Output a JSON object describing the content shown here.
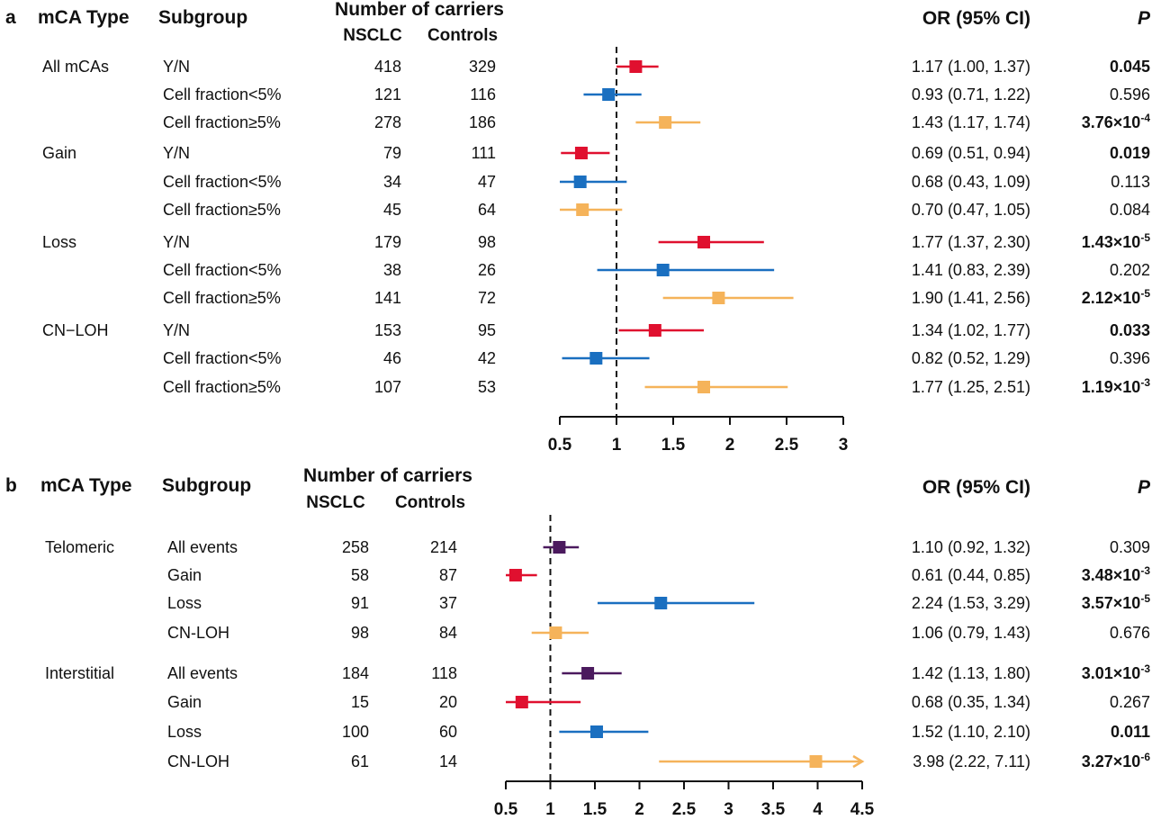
{
  "colors": {
    "yn": "#e0102f",
    "low": "#1a6fc0",
    "high": "#f5b35a",
    "all": "#4b1a5e",
    "axis": "#111111"
  },
  "chart_data": [
    {
      "type": "forest",
      "panel_label": "a",
      "columns": {
        "type": "mCA Type",
        "subgroup": "Subgroup",
        "carriers": "Number of carriers",
        "nsclc": "NSCLC",
        "controls": "Controls",
        "or": "OR (95% CI)",
        "p": "P"
      },
      "xaxis": {
        "range": [
          0.5,
          3
        ],
        "ticks": [
          "0.5",
          "1",
          "1.5",
          "2",
          "2.5",
          "3"
        ],
        "reference": 1
      },
      "rows": [
        {
          "type": "All mCAs",
          "subgroup": "Y/N",
          "nsclc": "418",
          "controls": "329",
          "or": 1.17,
          "lo": 1.0,
          "hi": 1.37,
          "or_text": "1.17 (1.00, 1.37)",
          "p_text": "0.045",
          "p_sup": "",
          "p_bold": true,
          "color": "yn"
        },
        {
          "type": "",
          "subgroup": "Cell fraction<5%",
          "nsclc": "121",
          "controls": "116",
          "or": 0.93,
          "lo": 0.71,
          "hi": 1.22,
          "or_text": "0.93 (0.71, 1.22)",
          "p_text": "0.596",
          "p_sup": "",
          "p_bold": false,
          "color": "low"
        },
        {
          "type": "",
          "subgroup": "Cell fraction≥5%",
          "nsclc": "278",
          "controls": "186",
          "or": 1.43,
          "lo": 1.17,
          "hi": 1.74,
          "or_text": "1.43 (1.17, 1.74)",
          "p_text": "3.76×10",
          "p_sup": "-4",
          "p_bold": true,
          "color": "high"
        },
        {
          "type": "Gain",
          "subgroup": "Y/N",
          "nsclc": "79",
          "controls": "111",
          "or": 0.69,
          "lo": 0.51,
          "hi": 0.94,
          "or_text": "0.69 (0.51, 0.94)",
          "p_text": "0.019",
          "p_sup": "",
          "p_bold": true,
          "color": "yn"
        },
        {
          "type": "",
          "subgroup": "Cell fraction<5%",
          "nsclc": "34",
          "controls": "47",
          "or": 0.68,
          "lo": 0.43,
          "hi": 1.09,
          "or_text": "0.68 (0.43, 1.09)",
          "p_text": "0.113",
          "p_sup": "",
          "p_bold": false,
          "color": "low"
        },
        {
          "type": "",
          "subgroup": "Cell fraction≥5%",
          "nsclc": "45",
          "controls": "64",
          "or": 0.7,
          "lo": 0.47,
          "hi": 1.05,
          "or_text": "0.70 (0.47, 1.05)",
          "p_text": "0.084",
          "p_sup": "",
          "p_bold": false,
          "color": "high"
        },
        {
          "type": "Loss",
          "subgroup": "Y/N",
          "nsclc": "179",
          "controls": "98",
          "or": 1.77,
          "lo": 1.37,
          "hi": 2.3,
          "or_text": "1.77 (1.37, 2.30)",
          "p_text": "1.43×10",
          "p_sup": "-5",
          "p_bold": true,
          "color": "yn"
        },
        {
          "type": "",
          "subgroup": "Cell fraction<5%",
          "nsclc": "38",
          "controls": "26",
          "or": 1.41,
          "lo": 0.83,
          "hi": 2.39,
          "or_text": "1.41 (0.83, 2.39)",
          "p_text": "0.202",
          "p_sup": "",
          "p_bold": false,
          "color": "low"
        },
        {
          "type": "",
          "subgroup": "Cell fraction≥5%",
          "nsclc": "141",
          "controls": "72",
          "or": 1.9,
          "lo": 1.41,
          "hi": 2.56,
          "or_text": "1.90 (1.41, 2.56)",
          "p_text": "2.12×10",
          "p_sup": "-5",
          "p_bold": true,
          "color": "high"
        },
        {
          "type": "CN−LOH",
          "subgroup": "Y/N",
          "nsclc": "153",
          "controls": "95",
          "or": 1.34,
          "lo": 1.02,
          "hi": 1.77,
          "or_text": "1.34 (1.02, 1.77)",
          "p_text": "0.033",
          "p_sup": "",
          "p_bold": true,
          "color": "yn"
        },
        {
          "type": "",
          "subgroup": "Cell fraction<5%",
          "nsclc": "46",
          "controls": "42",
          "or": 0.82,
          "lo": 0.52,
          "hi": 1.29,
          "or_text": "0.82 (0.52, 1.29)",
          "p_text": "0.396",
          "p_sup": "",
          "p_bold": false,
          "color": "low"
        },
        {
          "type": "",
          "subgroup": "Cell fraction≥5%",
          "nsclc": "107",
          "controls": "53",
          "or": 1.77,
          "lo": 1.25,
          "hi": 2.51,
          "or_text": "1.77 (1.25, 2.51)",
          "p_text": "1.19×10",
          "p_sup": "-3",
          "p_bold": true,
          "color": "high"
        }
      ]
    },
    {
      "type": "forest",
      "panel_label": "b",
      "columns": {
        "type": "mCA Type",
        "subgroup": "Subgroup",
        "carriers": "Number of carriers",
        "nsclc": "NSCLC",
        "controls": "Controls",
        "or": "OR (95% CI)",
        "p": "P"
      },
      "xaxis": {
        "range": [
          0.5,
          4.5
        ],
        "ticks": [
          "0.5",
          "1",
          "1.5",
          "2",
          "2.5",
          "3",
          "3.5",
          "4",
          "4.5"
        ],
        "reference": 1
      },
      "rows": [
        {
          "type": "Telomeric",
          "subgroup": "All events",
          "nsclc": "258",
          "controls": "214",
          "or": 1.1,
          "lo": 0.92,
          "hi": 1.32,
          "or_text": "1.10 (0.92, 1.32)",
          "p_text": "0.309",
          "p_sup": "",
          "p_bold": false,
          "color": "all"
        },
        {
          "type": "",
          "subgroup": "Gain",
          "nsclc": "58",
          "controls": "87",
          "or": 0.61,
          "lo": 0.44,
          "hi": 0.85,
          "or_text": "0.61 (0.44, 0.85)",
          "p_text": "3.48×10",
          "p_sup": "-3",
          "p_bold": true,
          "color": "yn"
        },
        {
          "type": "",
          "subgroup": "Loss",
          "nsclc": "91",
          "controls": "37",
          "or": 2.24,
          "lo": 1.53,
          "hi": 3.29,
          "or_text": "2.24 (1.53, 3.29)",
          "p_text": "3.57×10",
          "p_sup": "-5",
          "p_bold": true,
          "color": "low"
        },
        {
          "type": "",
          "subgroup": "CN-LOH",
          "nsclc": "98",
          "controls": "84",
          "or": 1.06,
          "lo": 0.79,
          "hi": 1.43,
          "or_text": "1.06 (0.79, 1.43)",
          "p_text": "0.676",
          "p_sup": "",
          "p_bold": false,
          "color": "high"
        },
        {
          "type": "Interstitial",
          "subgroup": "All events",
          "nsclc": "184",
          "controls": "118",
          "or": 1.42,
          "lo": 1.13,
          "hi": 1.8,
          "or_text": "1.42 (1.13, 1.80)",
          "p_text": "3.01×10",
          "p_sup": "-3",
          "p_bold": true,
          "color": "all"
        },
        {
          "type": "",
          "subgroup": "Gain",
          "nsclc": "15",
          "controls": "20",
          "or": 0.68,
          "lo": 0.35,
          "hi": 1.34,
          "or_text": "0.68 (0.35, 1.34)",
          "p_text": "0.267",
          "p_sup": "",
          "p_bold": false,
          "color": "yn"
        },
        {
          "type": "",
          "subgroup": "Loss",
          "nsclc": "100",
          "controls": "60",
          "or": 1.52,
          "lo": 1.1,
          "hi": 2.1,
          "or_text": "1.52 (1.10, 2.10)",
          "p_text": "0.011",
          "p_sup": "",
          "p_bold": true,
          "color": "low"
        },
        {
          "type": "",
          "subgroup": "CN-LOH",
          "nsclc": "61",
          "controls": "14",
          "or": 3.98,
          "lo": 2.22,
          "hi": 7.11,
          "or_text": "3.98 (2.22, 7.11)",
          "p_text": "3.27×10",
          "p_sup": "-6",
          "p_bold": true,
          "color": "high"
        }
      ]
    }
  ]
}
